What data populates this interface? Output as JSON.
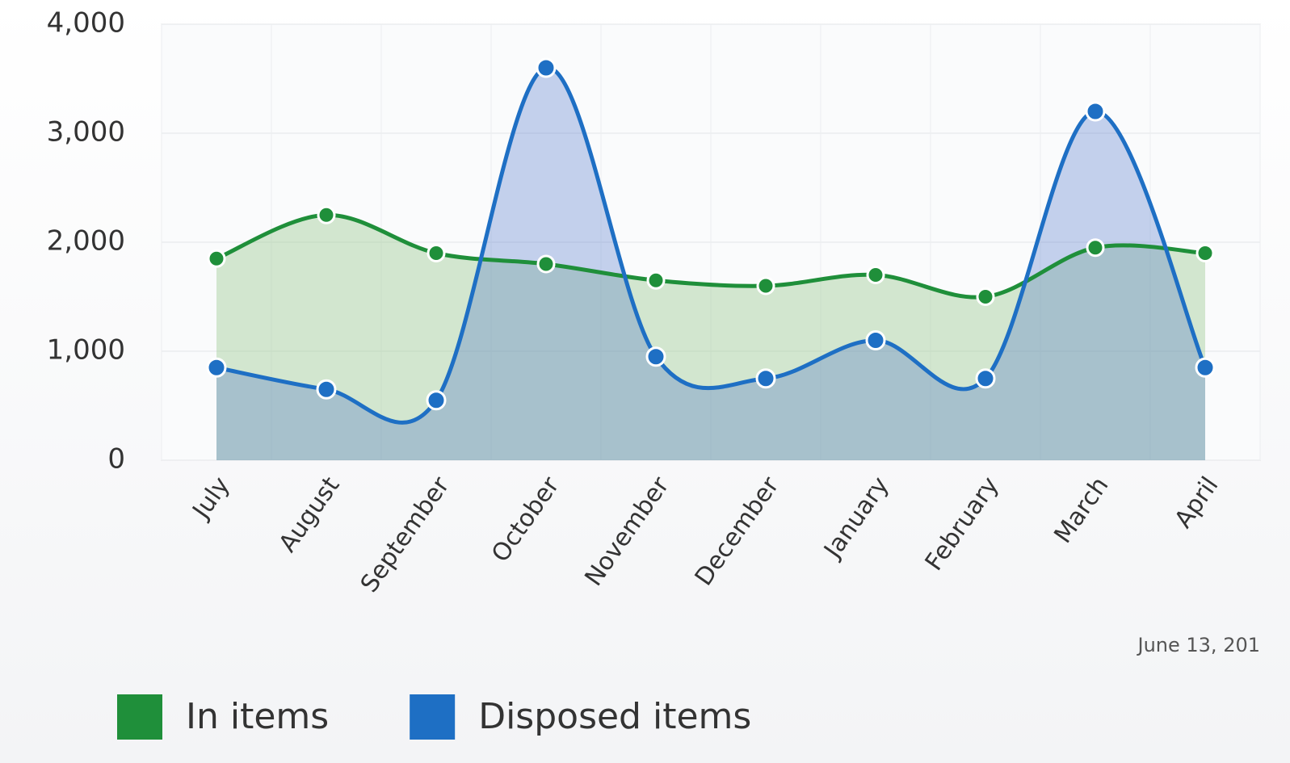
{
  "chart_data": {
    "type": "area",
    "categories": [
      "July",
      "August",
      "September",
      "October",
      "November",
      "December",
      "January",
      "February",
      "March",
      "April"
    ],
    "series": [
      {
        "name": "In items",
        "color": "#1f8f3a",
        "values": [
          1850,
          2250,
          1900,
          1800,
          1650,
          1600,
          1700,
          1500,
          1950,
          1900
        ]
      },
      {
        "name": "Disposed items",
        "color": "#1e6fc4",
        "values": [
          850,
          650,
          550,
          3600,
          950,
          750,
          1100,
          750,
          3200,
          850
        ]
      }
    ],
    "ylim": [
      0,
      4000
    ],
    "yticks": [
      0,
      {
        "value": 1000,
        "label": "1,000"
      },
      {
        "value": 2000,
        "label": "2,000"
      },
      {
        "value": 3000,
        "label": "3,000"
      },
      {
        "value": 4000,
        "label": "4,000"
      }
    ],
    "grid": true,
    "legend": "bottom",
    "date": "June 13, 201"
  }
}
